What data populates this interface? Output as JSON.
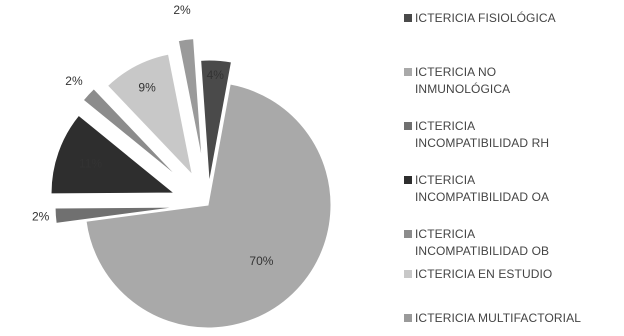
{
  "chart_data": {
    "type": "pie",
    "exploded": true,
    "legend_position": "right",
    "slices": [
      {
        "name": "ICTERICIA FISIOLÓGICA",
        "value": 4,
        "label": "4%",
        "color": "#4a4a4a"
      },
      {
        "name": "ICTERICIA NO\nINMUNOLÓGICA",
        "value": 70,
        "label": "70%",
        "color": "#a9a9a9"
      },
      {
        "name": "ICTERICIA\nINCOMPATIBILIDAD RH",
        "value": 2,
        "label": "2%",
        "color": "#707070"
      },
      {
        "name": "ICTERICIA\nINCOMPATIBILIDAD OA",
        "value": 11,
        "label": "11%",
        "color": "#2e2e2e"
      },
      {
        "name": "ICTERICIA\nINCOMPATIBILIDAD  OB",
        "value": 2,
        "label": "2%",
        "color": "#8c8c8c"
      },
      {
        "name": "ICTERICIA EN ESTUDIO",
        "value": 9,
        "label": "9%",
        "color": "#c8c8c8"
      },
      {
        "name": "ICTERICIA MULTIFACTORIAL",
        "value": 2,
        "label": "2%",
        "color": "#9a9a9a"
      }
    ]
  }
}
